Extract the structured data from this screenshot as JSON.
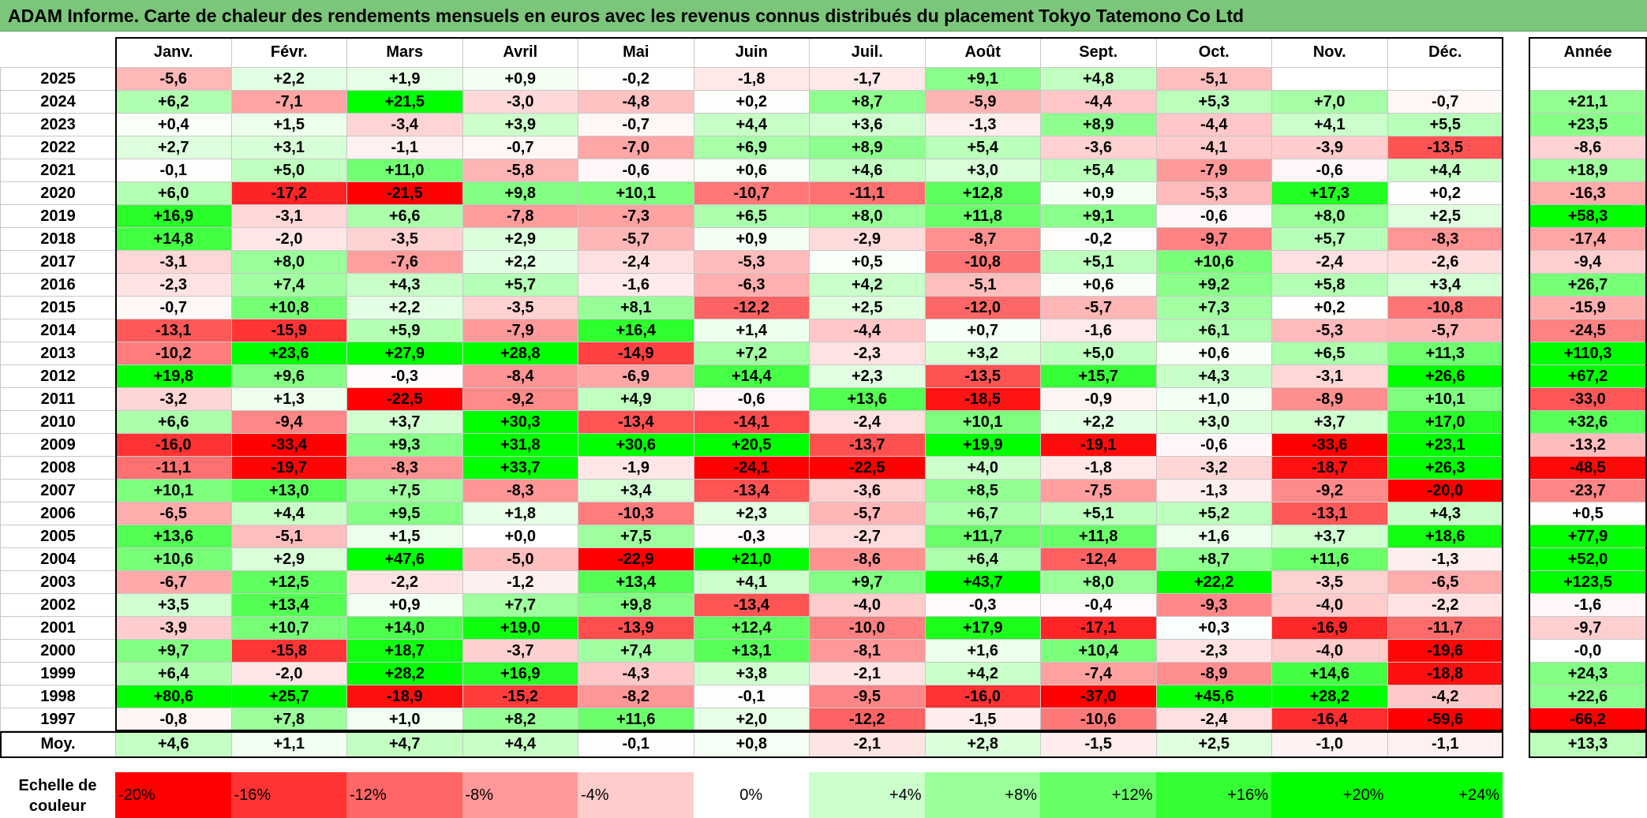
{
  "title": "ADAM Informe. Carte de chaleur des rendements mensuels en euros avec les revenus connus distribués du placement Tokyo Tatemono Co Ltd",
  "chart_data": {
    "type": "heatmap",
    "title": "ADAM Informe. Carte de chaleur des rendements mensuels en euros avec les revenus connus distribués du placement Tokyo Tatemono Co Ltd",
    "columns": [
      "Janv.",
      "Févr.",
      "Mars",
      "Avril",
      "Mai",
      "Juin",
      "Juil.",
      "Août",
      "Sept.",
      "Oct.",
      "Nov.",
      "Déc."
    ],
    "year_column_label": "Année",
    "rows": [
      {
        "year": "2025",
        "values": [
          "-5,6",
          "+2,2",
          "+1,9",
          "+0,9",
          "-0,2",
          "-1,8",
          "-1,7",
          "+9,1",
          "+4,8",
          "-5,1",
          "",
          ""
        ],
        "annual": ""
      },
      {
        "year": "2024",
        "values": [
          "+6,2",
          "-7,1",
          "+21,5",
          "-3,0",
          "-4,8",
          "+0,2",
          "+8,7",
          "-5,9",
          "-4,4",
          "+5,3",
          "+7,0",
          "-0,7"
        ],
        "annual": "+21,1"
      },
      {
        "year": "2023",
        "values": [
          "+0,4",
          "+1,5",
          "-3,4",
          "+3,9",
          "-0,7",
          "+4,4",
          "+3,6",
          "-1,3",
          "+8,9",
          "-4,4",
          "+4,1",
          "+5,5"
        ],
        "annual": "+23,5"
      },
      {
        "year": "2022",
        "values": [
          "+2,7",
          "+3,1",
          "-1,1",
          "-0,7",
          "-7,0",
          "+6,9",
          "+8,9",
          "+5,4",
          "-3,6",
          "-4,1",
          "-3,9",
          "-13,5"
        ],
        "annual": "-8,6"
      },
      {
        "year": "2021",
        "values": [
          "-0,1",
          "+5,0",
          "+11,0",
          "-5,8",
          "-0,6",
          "+0,6",
          "+4,6",
          "+3,0",
          "+5,4",
          "-7,9",
          "-0,6",
          "+4,4"
        ],
        "annual": "+18,9"
      },
      {
        "year": "2020",
        "values": [
          "+6,0",
          "-17,2",
          "-21,5",
          "+9,8",
          "+10,1",
          "-10,7",
          "-11,1",
          "+12,8",
          "+0,9",
          "-5,3",
          "+17,3",
          "+0,2"
        ],
        "annual": "-16,3"
      },
      {
        "year": "2019",
        "values": [
          "+16,9",
          "-3,1",
          "+6,6",
          "-7,8",
          "-7,3",
          "+6,5",
          "+8,0",
          "+11,8",
          "+9,1",
          "-0,6",
          "+8,0",
          "+2,5"
        ],
        "annual": "+58,3"
      },
      {
        "year": "2018",
        "values": [
          "+14,8",
          "-2,0",
          "-3,5",
          "+2,9",
          "-5,7",
          "+0,9",
          "-2,9",
          "-8,7",
          "-0,2",
          "-9,7",
          "+5,7",
          "-8,3"
        ],
        "annual": "-17,4"
      },
      {
        "year": "2017",
        "values": [
          "-3,1",
          "+8,0",
          "-7,6",
          "+2,2",
          "-2,4",
          "-5,3",
          "+0,5",
          "-10,8",
          "+5,1",
          "+10,6",
          "-2,4",
          "-2,6"
        ],
        "annual": "-9,4"
      },
      {
        "year": "2016",
        "values": [
          "-2,3",
          "+7,4",
          "+4,3",
          "+5,7",
          "-1,6",
          "-6,3",
          "+4,2",
          "-5,1",
          "+0,6",
          "+9,2",
          "+5,8",
          "+3,4"
        ],
        "annual": "+26,7"
      },
      {
        "year": "2015",
        "values": [
          "-0,7",
          "+10,8",
          "+2,2",
          "-3,5",
          "+8,1",
          "-12,2",
          "+2,5",
          "-12,0",
          "-5,7",
          "+7,3",
          "+0,2",
          "-10,8"
        ],
        "annual": "-15,9"
      },
      {
        "year": "2014",
        "values": [
          "-13,1",
          "-15,9",
          "+5,9",
          "-7,9",
          "+16,4",
          "+1,4",
          "-4,4",
          "+0,7",
          "-1,6",
          "+6,1",
          "-5,3",
          "-5,7"
        ],
        "annual": "-24,5"
      },
      {
        "year": "2013",
        "values": [
          "-10,2",
          "+23,6",
          "+27,9",
          "+28,8",
          "-14,9",
          "+7,2",
          "-2,3",
          "+3,2",
          "+5,0",
          "+0,6",
          "+6,5",
          "+11,3"
        ],
        "annual": "+110,3"
      },
      {
        "year": "2012",
        "values": [
          "+19,8",
          "+9,6",
          "-0,3",
          "-8,4",
          "-6,9",
          "+14,4",
          "+2,3",
          "-13,5",
          "+15,7",
          "+4,3",
          "-3,1",
          "+26,6"
        ],
        "annual": "+67,2"
      },
      {
        "year": "2011",
        "values": [
          "-3,2",
          "+1,3",
          "-22,5",
          "-9,2",
          "+4,9",
          "-0,6",
          "+13,6",
          "-18,5",
          "-0,9",
          "+1,0",
          "-8,9",
          "+10,1"
        ],
        "annual": "-33,0"
      },
      {
        "year": "2010",
        "values": [
          "+6,6",
          "-9,4",
          "+3,7",
          "+30,3",
          "-13,4",
          "-14,1",
          "-2,4",
          "+10,1",
          "+2,2",
          "+3,0",
          "+3,7",
          "+17,0"
        ],
        "annual": "+32,6"
      },
      {
        "year": "2009",
        "values": [
          "-16,0",
          "-33,4",
          "+9,3",
          "+31,8",
          "+30,6",
          "+20,5",
          "-13,7",
          "+19,9",
          "-19,1",
          "-0,6",
          "-33,6",
          "+23,1"
        ],
        "annual": "-13,2"
      },
      {
        "year": "2008",
        "values": [
          "-11,1",
          "-19,7",
          "-8,3",
          "+33,7",
          "-1,9",
          "-24,1",
          "-22,5",
          "+4,0",
          "-1,8",
          "-3,2",
          "-18,7",
          "+26,3"
        ],
        "annual": "-48,5"
      },
      {
        "year": "2007",
        "values": [
          "+10,1",
          "+13,0",
          "+7,5",
          "-8,3",
          "+3,4",
          "-13,4",
          "-3,6",
          "+8,5",
          "-7,5",
          "-1,3",
          "-9,2",
          "-20,0"
        ],
        "annual": "-23,7"
      },
      {
        "year": "2006",
        "values": [
          "-6,5",
          "+4,4",
          "+9,5",
          "+1,8",
          "-10,3",
          "+2,3",
          "-5,7",
          "+6,7",
          "+5,1",
          "+5,2",
          "-13,1",
          "+4,3"
        ],
        "annual": "+0,5"
      },
      {
        "year": "2005",
        "values": [
          "+13,6",
          "-5,1",
          "+1,5",
          "+0,0",
          "+7,5",
          "-0,3",
          "-2,7",
          "+11,7",
          "+11,8",
          "+1,6",
          "+3,7",
          "+18,6"
        ],
        "annual": "+77,9"
      },
      {
        "year": "2004",
        "values": [
          "+10,6",
          "+2,9",
          "+47,6",
          "-5,0",
          "-22,9",
          "+21,0",
          "-8,6",
          "+6,4",
          "-12,4",
          "+8,7",
          "+11,6",
          "-1,3"
        ],
        "annual": "+52,0"
      },
      {
        "year": "2003",
        "values": [
          "-6,7",
          "+12,5",
          "-2,2",
          "-1,2",
          "+13,4",
          "+4,1",
          "+9,7",
          "+43,7",
          "+8,0",
          "+22,2",
          "-3,5",
          "-6,5"
        ],
        "annual": "+123,5"
      },
      {
        "year": "2002",
        "values": [
          "+3,5",
          "+13,4",
          "+0,9",
          "+7,7",
          "+9,8",
          "-13,4",
          "-4,0",
          "-0,3",
          "-0,4",
          "-9,3",
          "-4,0",
          "-2,2"
        ],
        "annual": "-1,6"
      },
      {
        "year": "2001",
        "values": [
          "-3,9",
          "+10,7",
          "+14,0",
          "+19,0",
          "-13,9",
          "+12,4",
          "-10,0",
          "+17,9",
          "-17,1",
          "+0,3",
          "-16,9",
          "-11,7"
        ],
        "annual": "-9,7"
      },
      {
        "year": "2000",
        "values": [
          "+9,7",
          "-15,8",
          "+18,7",
          "-3,7",
          "+7,4",
          "+13,1",
          "-8,1",
          "+1,6",
          "+10,4",
          "-2,3",
          "-4,0",
          "-19,6"
        ],
        "annual": "-0,0"
      },
      {
        "year": "1999",
        "values": [
          "+6,4",
          "-2,0",
          "+28,2",
          "+16,9",
          "-4,3",
          "+3,8",
          "-2,1",
          "+4,2",
          "-7,4",
          "-8,9",
          "+14,6",
          "-18,8"
        ],
        "annual": "+24,3"
      },
      {
        "year": "1998",
        "values": [
          "+80,6",
          "+25,7",
          "-18,9",
          "-15,2",
          "-8,2",
          "-0,1",
          "-9,5",
          "-16,0",
          "-37,0",
          "+45,6",
          "+28,2",
          "-4,2"
        ],
        "annual": "+22,6"
      },
      {
        "year": "1997",
        "values": [
          "-0,8",
          "+7,8",
          "+1,0",
          "+8,2",
          "+11,6",
          "+2,0",
          "-12,2",
          "-1,5",
          "-10,6",
          "-2,4",
          "-16,4",
          "-59,6"
        ],
        "annual": "-66,2"
      }
    ],
    "average": {
      "label": "Moy.",
      "values": [
        "+4,6",
        "+1,1",
        "+4,7",
        "+4,4",
        "-0,1",
        "+0,8",
        "-2,1",
        "+2,8",
        "-1,5",
        "+2,5",
        "-1,0",
        "-1,1"
      ],
      "annual": "+13,3"
    },
    "legend": {
      "label": "Echelle de couleur",
      "steps": [
        "-20%",
        "-16%",
        "-12%",
        "-8%",
        "-4%",
        "0%",
        "+4%",
        "+8%",
        "+12%",
        "+16%",
        "+20%",
        "+24%"
      ],
      "step_values": [
        -20,
        -16,
        -12,
        -8,
        -4,
        0,
        4,
        8,
        12,
        16,
        20,
        24
      ]
    },
    "color_scale": {
      "negative": "#ff0000",
      "zero": "#ffffff",
      "positive": "#00ff00",
      "monthly_max_abs": 20,
      "annual_max_abs": 50
    }
  }
}
